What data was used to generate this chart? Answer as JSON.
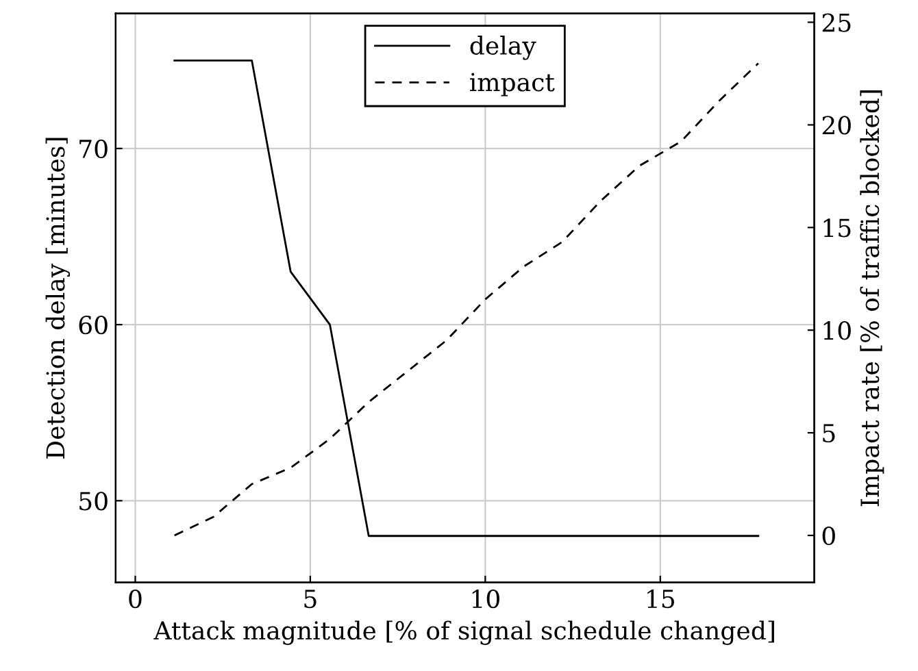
{
  "chart_data": {
    "type": "line",
    "xlabel": "Attack magnitude [% of signal schedule changed]",
    "ylabel": "Detection delay [minutes]",
    "y2label": "Impact rate [% of traffic blocked]",
    "x": [
      1.12,
      2.23,
      3.33,
      4.44,
      5.56,
      6.67,
      7.78,
      8.89,
      10.0,
      11.1,
      12.2,
      13.3,
      14.4,
      15.6,
      16.7,
      17.8
    ],
    "series": [
      {
        "name": "delay",
        "color": "#000000",
        "line_style": "solid",
        "values": [
          75,
          75,
          75,
          63,
          60,
          48,
          48,
          48,
          48,
          48,
          48,
          48,
          48,
          48,
          48,
          48
        ]
      },
      {
        "name": "impact",
        "color": "#000000",
        "line_style": "dashed",
        "axis": "y2",
        "values": [
          0,
          0.9,
          2.5,
          3.3,
          4.7,
          6.5,
          8.0,
          9.5,
          11.5,
          13.1,
          14.3,
          16.3,
          18.0,
          19.2,
          21.2,
          23.0
        ]
      }
    ],
    "xlim": [
      -0.56,
      19.4
    ],
    "xticks": [
      0,
      5,
      10,
      15
    ],
    "ylim": [
      45.36,
      77.67
    ],
    "yticks": [
      50,
      60,
      70
    ],
    "y2lim": [
      -2.29,
      25.43
    ],
    "y2ticks": [
      0,
      5,
      10,
      15,
      20,
      25
    ],
    "grid": true,
    "legend": "top",
    "marker": "none"
  }
}
